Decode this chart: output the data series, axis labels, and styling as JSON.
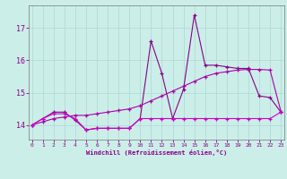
{
  "x": [
    0,
    1,
    2,
    3,
    4,
    5,
    6,
    7,
    8,
    9,
    10,
    11,
    12,
    13,
    14,
    15,
    16,
    17,
    18,
    19,
    20,
    21,
    22,
    23
  ],
  "y_jagged": [
    14.0,
    14.2,
    14.4,
    14.4,
    14.15,
    13.85,
    13.9,
    13.9,
    13.9,
    13.9,
    14.2,
    16.6,
    15.6,
    14.2,
    15.1,
    17.4,
    15.85,
    15.85,
    15.8,
    15.75,
    15.75,
    14.9,
    14.85,
    14.4
  ],
  "y_diagonal": [
    14.0,
    14.1,
    14.2,
    14.25,
    14.3,
    14.3,
    14.35,
    14.4,
    14.45,
    14.5,
    14.6,
    14.75,
    14.9,
    15.05,
    15.2,
    15.35,
    15.5,
    15.6,
    15.65,
    15.7,
    15.72,
    15.72,
    15.7,
    14.42
  ],
  "y_flat": [
    14.0,
    14.2,
    14.35,
    14.35,
    14.2,
    13.85,
    13.9,
    13.9,
    13.9,
    13.9,
    14.2,
    14.2,
    14.2,
    14.2,
    14.2,
    14.2,
    14.2,
    14.2,
    14.2,
    14.2,
    14.2,
    14.2,
    14.2,
    14.4
  ],
  "background_color": "#cceee8",
  "grid_color": "#aad8d4",
  "line_color1": "#880088",
  "line_color2": "#aa00aa",
  "line_color3": "#cc00cc",
  "xlabel": "Windchill (Refroidissement éolien,°C)",
  "yticks": [
    14,
    15,
    16,
    17
  ],
  "xticks": [
    0,
    1,
    2,
    3,
    4,
    5,
    6,
    7,
    8,
    9,
    10,
    11,
    12,
    13,
    14,
    15,
    16,
    17,
    18,
    19,
    20,
    21,
    22,
    23
  ],
  "xlim": [
    -0.3,
    23.3
  ],
  "ylim": [
    13.55,
    17.7
  ]
}
